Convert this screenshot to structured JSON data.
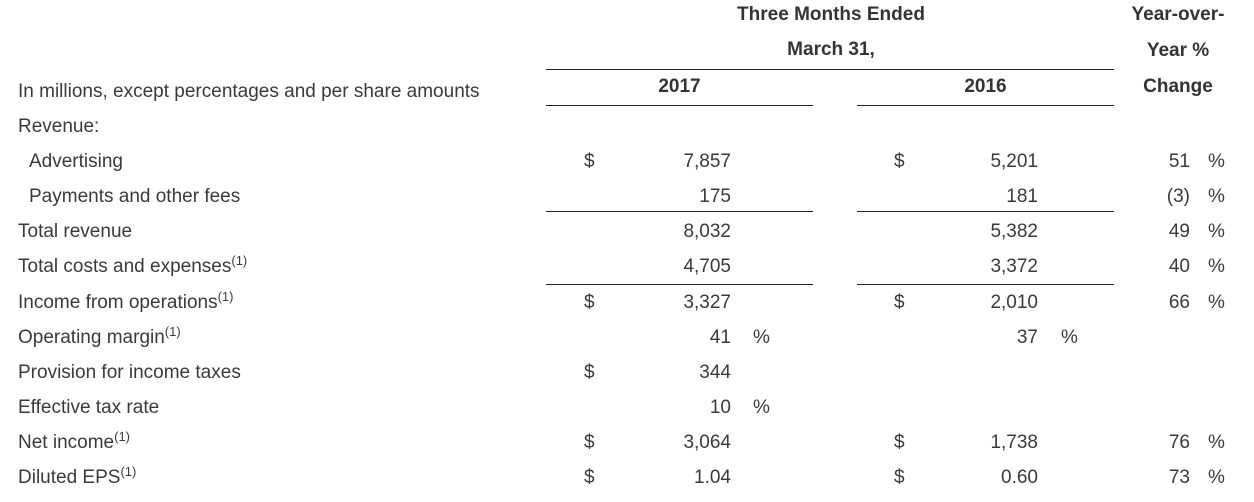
{
  "header": {
    "period_lines": [
      "Three Months Ended",
      "March 31,"
    ],
    "change_lines": [
      "Year-over-",
      "Year %",
      "Change"
    ],
    "units": "In millions, except percentages and per share amounts",
    "years": [
      "2017",
      "2016"
    ]
  },
  "table": {
    "rows": [
      {
        "label": "Revenue:"
      },
      {
        "label": "Advertising",
        "indent": true,
        "y2017": {
          "currency": "$",
          "value": "7,857"
        },
        "y2016": {
          "currency": "$",
          "value": "5,201"
        },
        "change": {
          "value": "51",
          "unit": "%"
        }
      },
      {
        "label": "Payments and other fees",
        "indent": true,
        "y2017": {
          "value": "175"
        },
        "y2016": {
          "value": "181"
        },
        "change": {
          "value": "(3)",
          "unit": "%"
        }
      },
      {
        "label": "Total revenue",
        "y2017": {
          "value": "8,032"
        },
        "y2016": {
          "value": "5,382"
        },
        "change": {
          "value": "49",
          "unit": "%"
        }
      },
      {
        "label": "Total costs and expenses",
        "note": "(1)",
        "y2017": {
          "value": "4,705"
        },
        "y2016": {
          "value": "3,372"
        },
        "change": {
          "value": "40",
          "unit": "%"
        }
      },
      {
        "label": "Income from operations",
        "note": "(1)",
        "y2017": {
          "currency": "$",
          "value": "3,327"
        },
        "y2016": {
          "currency": "$",
          "value": "2,010"
        },
        "change": {
          "value": "66",
          "unit": "%"
        }
      },
      {
        "label": "Operating margin",
        "note": "(1)",
        "y2017": {
          "value": "41",
          "unit": "%"
        },
        "y2016": {
          "value": "37",
          "unit": "%"
        }
      },
      {
        "label": "Provision for income taxes",
        "y2017": {
          "currency": "$",
          "value": "344"
        }
      },
      {
        "label": "Effective tax rate",
        "y2017": {
          "value": "10",
          "unit": "%"
        }
      },
      {
        "label": "Net income",
        "note": "(1)",
        "y2017": {
          "currency": "$",
          "value": "3,064"
        },
        "y2016": {
          "currency": "$",
          "value": "1,738"
        },
        "change": {
          "value": "76",
          "unit": "%"
        }
      },
      {
        "label": "Diluted EPS",
        "note": "(1)",
        "y2017": {
          "currency": "$",
          "value": "1.04"
        },
        "y2016": {
          "currency": "$",
          "value": "0.60"
        },
        "change": {
          "value": "73",
          "unit": "%"
        }
      }
    ]
  }
}
